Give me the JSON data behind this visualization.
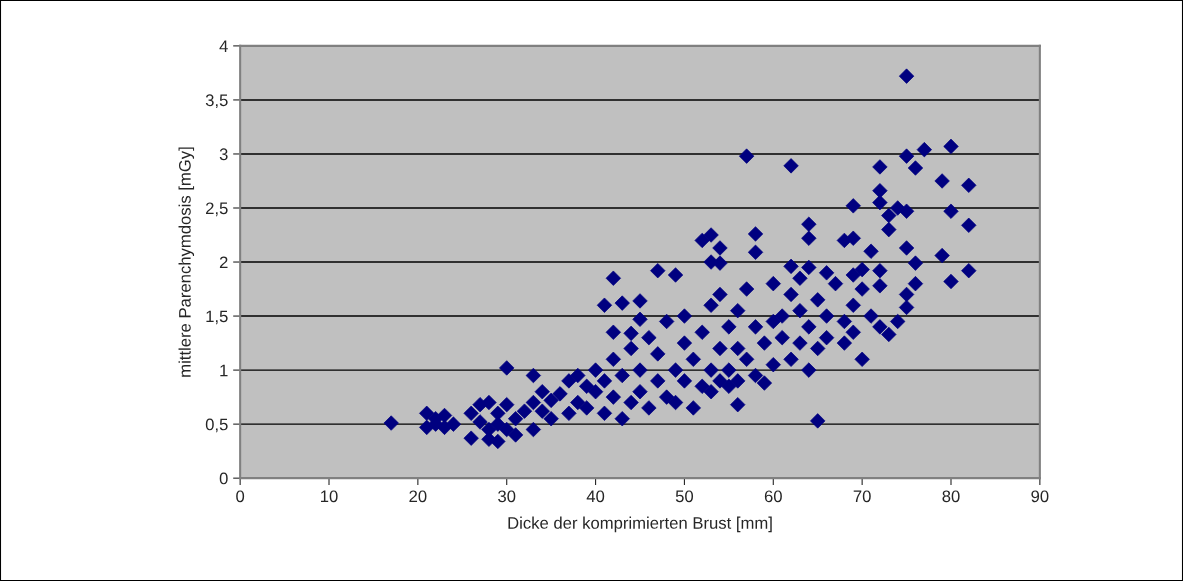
{
  "chart_data": {
    "type": "scatter",
    "xlabel": "Dicke der komprimierten Brust [mm]",
    "ylabel": "mittlere Parenchymdosis [mGy]",
    "xlim": [
      0,
      90
    ],
    "xticks": [
      0,
      10,
      20,
      30,
      40,
      50,
      60,
      70,
      80,
      90
    ],
    "ylim": [
      0,
      4
    ],
    "yticks": [
      0,
      {
        "value": 0.5,
        "label": "0,5"
      },
      1,
      {
        "value": 1.5,
        "label": "1,5"
      },
      2,
      {
        "value": 2.5,
        "label": "2,5"
      },
      3,
      {
        "value": 3.5,
        "label": "3,5"
      },
      4
    ],
    "grid": "y",
    "marker": "diamond",
    "legend": false,
    "series": [
      {
        "color": "#000080",
        "x": [
          17,
          75,
          57,
          62,
          75,
          77,
          80,
          76,
          72,
          79,
          82,
          72,
          74,
          69,
          72,
          73,
          80,
          75,
          82,
          73,
          53,
          52,
          54,
          58,
          58,
          64,
          64,
          68,
          69,
          71,
          75,
          79,
          76,
          54,
          53,
          42,
          47,
          49,
          62,
          66,
          64,
          70,
          72,
          80,
          82,
          65,
          30,
          33,
          41,
          43,
          45,
          42,
          44,
          56,
          28,
          29,
          26,
          21,
          21,
          22,
          22,
          23,
          23,
          24,
          26,
          27,
          27,
          28,
          28,
          29,
          29,
          30,
          30,
          31,
          31,
          32,
          33,
          33,
          34,
          34,
          35,
          35,
          36,
          37,
          37,
          38,
          38,
          39,
          39,
          40,
          40,
          41,
          41,
          42,
          42,
          43,
          43,
          44,
          44,
          45,
          45,
          45,
          46,
          46,
          47,
          47,
          48,
          48,
          49,
          49,
          50,
          50,
          50,
          51,
          51,
          52,
          52,
          53,
          53,
          53,
          54,
          54,
          54,
          55,
          55,
          55,
          56,
          56,
          56,
          57,
          57,
          58,
          58,
          59,
          59,
          60,
          60,
          61,
          61,
          62,
          62,
          63,
          63,
          64,
          64,
          65,
          65,
          66,
          66,
          67,
          68,
          68,
          69,
          69,
          70,
          70,
          71,
          72,
          72,
          73,
          74,
          75,
          75,
          76,
          69,
          60,
          63
        ],
        "values": [
          0.51,
          3.72,
          2.98,
          2.89,
          2.98,
          3.04,
          3.07,
          2.87,
          2.88,
          2.75,
          2.71,
          2.66,
          2.5,
          2.52,
          2.55,
          2.43,
          2.47,
          2.47,
          2.34,
          2.3,
          2.25,
          2.2,
          2.13,
          2.26,
          2.09,
          2.35,
          2.22,
          2.2,
          2.22,
          2.1,
          2.13,
          2.06,
          1.99,
          1.99,
          2.0,
          1.85,
          1.92,
          1.88,
          1.96,
          1.9,
          1.95,
          1.93,
          1.92,
          1.82,
          1.92,
          0.53,
          1.02,
          0.95,
          1.6,
          1.62,
          1.64,
          1.35,
          1.34,
          0.68,
          0.36,
          0.34,
          0.37,
          0.6,
          0.47,
          0.5,
          0.55,
          0.58,
          0.47,
          0.5,
          0.6,
          0.52,
          0.68,
          0.7,
          0.45,
          0.6,
          0.5,
          0.68,
          0.45,
          0.55,
          0.4,
          0.62,
          0.7,
          0.45,
          0.8,
          0.62,
          0.55,
          0.72,
          0.78,
          0.6,
          0.9,
          0.95,
          0.7,
          0.85,
          0.65,
          0.8,
          1.0,
          0.6,
          0.9,
          1.1,
          0.75,
          0.55,
          0.95,
          1.2,
          0.7,
          0.8,
          1.0,
          1.47,
          0.65,
          1.3,
          0.9,
          1.15,
          0.75,
          1.45,
          1.0,
          0.7,
          1.25,
          1.5,
          0.9,
          0.65,
          1.1,
          0.85,
          1.35,
          1.6,
          1.0,
          0.8,
          1.2,
          0.9,
          1.7,
          1.4,
          1.0,
          0.85,
          1.55,
          1.2,
          0.9,
          1.75,
          1.1,
          1.4,
          0.95,
          1.25,
          0.88,
          1.05,
          1.45,
          1.3,
          1.5,
          1.1,
          1.7,
          1.25,
          1.55,
          1.0,
          1.4,
          1.2,
          1.65,
          1.5,
          1.3,
          1.8,
          1.45,
          1.25,
          1.6,
          1.35,
          1.1,
          1.75,
          1.5,
          1.4,
          1.78,
          1.33,
          1.45,
          1.58,
          1.7,
          1.8,
          1.88,
          1.8,
          1.85
        ]
      }
    ]
  }
}
